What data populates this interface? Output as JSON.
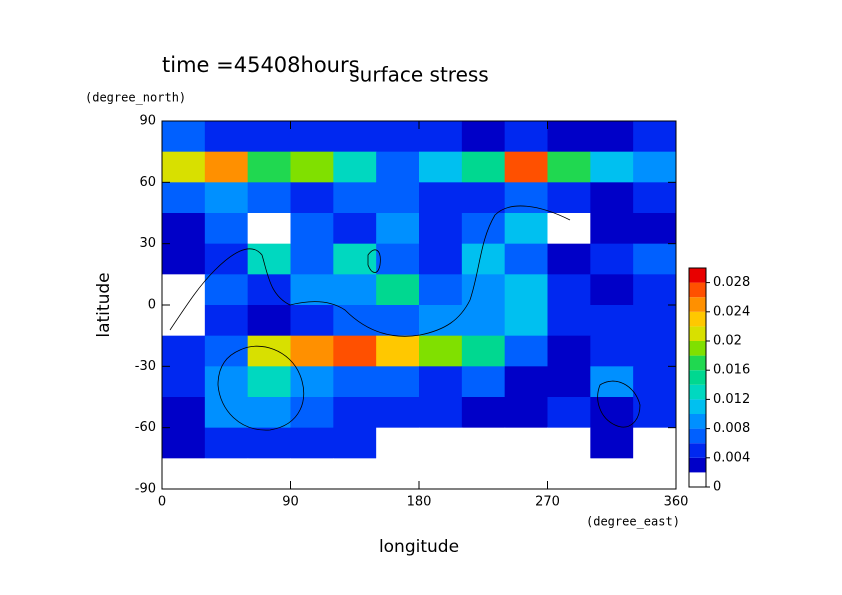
{
  "chart_data": {
    "type": "contour",
    "title": "surface stress",
    "subtitle": "time =45408hours",
    "x_label": "longitude",
    "y_label": "latitude",
    "x_unit": "(degree_east)",
    "y_unit": "(degree_north)",
    "xlim": [
      0,
      360
    ],
    "ylim": [
      -90,
      90
    ],
    "xticks": [
      0,
      90,
      180,
      270,
      360
    ],
    "yticks": [
      -90,
      -60,
      -30,
      0,
      30,
      60,
      90
    ],
    "x": [
      15,
      45,
      75,
      105,
      135,
      165,
      195,
      225,
      255,
      285,
      315,
      345
    ],
    "y": [
      82.5,
      67.5,
      52.5,
      37.5,
      22.5,
      7.5,
      -7.5,
      -22.5,
      -37.5,
      -52.5,
      -67.5,
      -82.5
    ],
    "z": [
      [
        0.006,
        0.005,
        0.005,
        0.004,
        0.004,
        0.004,
        0.004,
        0.003,
        0.004,
        0.003,
        0.003,
        0.004
      ],
      [
        0.02,
        0.024,
        0.016,
        0.018,
        0.012,
        0.006,
        0.01,
        0.014,
        0.026,
        0.016,
        0.01,
        0.008
      ],
      [
        0.006,
        0.008,
        0.006,
        0.005,
        0.006,
        0.006,
        0.004,
        0.005,
        0.006,
        0.004,
        0.003,
        0.004
      ],
      [
        0.003,
        0.006,
        0.001,
        0.006,
        0.005,
        0.008,
        0.004,
        0.006,
        0.01,
        0.001,
        0.002,
        0.003
      ],
      [
        0.002,
        0.004,
        0.012,
        0.006,
        0.012,
        0.006,
        0.005,
        0.01,
        0.006,
        0.002,
        0.005,
        0.006
      ],
      [
        0.001,
        0.006,
        0.004,
        0.008,
        0.008,
        0.014,
        0.006,
        0.008,
        0.01,
        0.004,
        0.003,
        0.004
      ],
      [
        0.001,
        0.004,
        0.002,
        0.004,
        0.006,
        0.006,
        0.008,
        0.008,
        0.01,
        0.004,
        0.005,
        0.004
      ],
      [
        0.004,
        0.006,
        0.02,
        0.024,
        0.026,
        0.022,
        0.018,
        0.014,
        0.006,
        0.003,
        0.004,
        0.005
      ],
      [
        0.004,
        0.008,
        0.012,
        0.008,
        0.006,
        0.006,
        0.004,
        0.006,
        0.003,
        0.002,
        0.008,
        0.004
      ],
      [
        0.003,
        0.008,
        0.008,
        0.006,
        0.005,
        0.005,
        0.004,
        0.002,
        0.002,
        0.004,
        0.003,
        0.005
      ],
      [
        0.002,
        0.004,
        0.005,
        0.004,
        0.004,
        0.001,
        0.001,
        0.001,
        0.001,
        0.001,
        0.003,
        0.001
      ],
      [
        0,
        0,
        0,
        0,
        0,
        0,
        0,
        0,
        0,
        0,
        0,
        0
      ]
    ],
    "levels": [
      0,
      0.002,
      0.004,
      0.006,
      0.008,
      0.01,
      0.012,
      0.014,
      0.016,
      0.018,
      0.02,
      0.022,
      0.024,
      0.026,
      0.028,
      0.03
    ],
    "colors": [
      "#ffffff",
      "#0000c8",
      "#0028f0",
      "#0060ff",
      "#0090ff",
      "#00c0f0",
      "#00d8c0",
      "#00d890",
      "#20d850",
      "#80e000",
      "#d8e000",
      "#ffc800",
      "#ff9000",
      "#ff5000",
      "#e80000"
    ],
    "colorbar_ticks": [
      0,
      0.004,
      0.008,
      0.012,
      0.016,
      0.02,
      0.024,
      0.028
    ]
  }
}
